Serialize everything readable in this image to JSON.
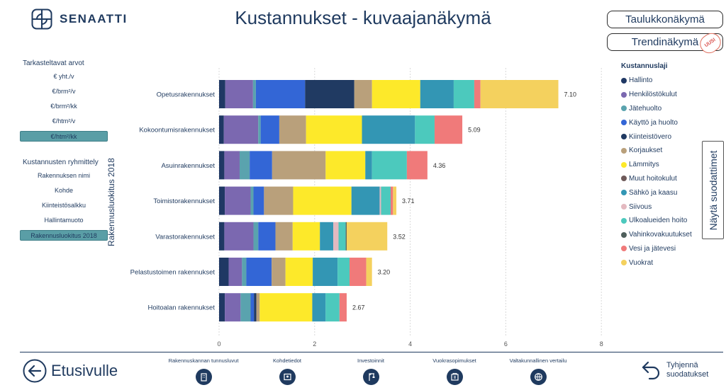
{
  "header": {
    "logo_text": "SENAATTI",
    "title": "Kustannukset - kuvaajanäkymä",
    "table_view_label": "Taulukkonäkymä",
    "trend_view_label": "Trendinäkymä",
    "new_badge": "UUSI"
  },
  "left_panel": {
    "values_heading": "Tarkasteltavat arvot",
    "value_options": [
      "€ yht./v",
      "€/brm²/v",
      "€/brm²/kk",
      "€/htm²/v",
      "€/htm²/kk"
    ],
    "selected_value_index": 4,
    "grouping_heading": "Kustannusten ryhmittely",
    "grouping_options": [
      "Rakennuksen nimi",
      "Kohde",
      "Kiinteistösalkku",
      "Hallintamuoto",
      "Rakennusluokitus 2018"
    ],
    "selected_grouping_index": 4
  },
  "legend": {
    "title": "Kustannuslaji"
  },
  "filter_button_label": "Näytä suodattimet",
  "footer": {
    "back_label": "Etusivulle",
    "nav": [
      {
        "label": "Rakennuskannan tunnusluvut",
        "icon": "building-icon"
      },
      {
        "label": "Kohdetiedot",
        "icon": "map-icon"
      },
      {
        "label": "Investoinnit",
        "icon": "crane-icon"
      },
      {
        "label": "Vuokrasopimukset",
        "icon": "document-building-icon"
      },
      {
        "label": "Valtakunnallinen vertailu",
        "icon": "globe-icon"
      }
    ],
    "clear_label_line1": "Tyhjennä",
    "clear_label_line2": "suodatukset"
  },
  "chart_data": {
    "type": "bar",
    "orientation": "horizontal",
    "stacked": true,
    "ylabel": "Rakennusluokitus 2018",
    "xlim": [
      0,
      8
    ],
    "xticks": [
      0,
      2,
      4,
      6,
      8
    ],
    "grid": true,
    "legend_position": "right",
    "categories": [
      "Opetusrakennukset",
      "Kokoontumisrakennukset",
      "Asuinrakennukset",
      "Toimistorakennukset",
      "Varastorakennukset",
      "Pelastustoimen rakennukset",
      "Hoitoalan rakennukset"
    ],
    "totals": [
      7.1,
      5.09,
      4.36,
      3.71,
      3.52,
      3.2,
      2.67
    ],
    "total_labels": [
      "7.10",
      "5.09",
      "4.36",
      "3.71",
      "3.52",
      "3.20",
      "2.67"
    ],
    "series": [
      {
        "name": "Hallinto",
        "color": "#1f3864",
        "values": [
          0.13,
          0.1,
          0.11,
          0.12,
          0.11,
          0.2,
          0.12
        ]
      },
      {
        "name": "Henkilöstökulut",
        "color": "#7b68b0",
        "values": [
          0.58,
          0.72,
          0.32,
          0.54,
          0.61,
          0.28,
          0.33
        ]
      },
      {
        "name": "Jätehuolto",
        "color": "#5aa3ae",
        "values": [
          0.06,
          0.05,
          0.21,
          0.06,
          0.1,
          0.09,
          0.21
        ]
      },
      {
        "name": "Käyttö ja huolto",
        "color": "#3366d6",
        "values": [
          1.03,
          0.39,
          0.47,
          0.22,
          0.36,
          0.53,
          0.07
        ]
      },
      {
        "name": "Kiinteistövero",
        "color": "#203a62",
        "values": [
          1.03,
          0.0,
          0.0,
          0.0,
          0.0,
          0.0,
          0.05
        ]
      },
      {
        "name": "Korjaukset",
        "color": "#b9a07b",
        "values": [
          0.37,
          0.56,
          1.12,
          0.61,
          0.36,
          0.29,
          0.07
        ]
      },
      {
        "name": "Lämmitys",
        "color": "#fde92a",
        "values": [
          1.01,
          1.17,
          0.83,
          1.22,
          0.57,
          0.57,
          1.1
        ]
      },
      {
        "name": "Muut hoitokulut",
        "color": "#6e5a5a",
        "values": [
          0.0,
          0.0,
          0.0,
          0.0,
          0.0,
          0.0,
          0.0
        ]
      },
      {
        "name": "Sähkö ja kaasu",
        "color": "#3396b4",
        "values": [
          0.7,
          1.11,
          0.14,
          0.59,
          0.28,
          0.52,
          0.28
        ]
      },
      {
        "name": "Siivous",
        "color": "#e3b9c0",
        "values": [
          0.0,
          0.0,
          0.0,
          0.03,
          0.11,
          0.0,
          0.0
        ]
      },
      {
        "name": "Ulkoalueiden hoito",
        "color": "#4cc9bd",
        "values": [
          0.43,
          0.41,
          0.73,
          0.2,
          0.15,
          0.25,
          0.29
        ]
      },
      {
        "name": "Vahinkovakuutukset",
        "color": "#4f5f5c",
        "values": [
          0.0,
          0.0,
          0.0,
          0.0,
          0.02,
          0.0,
          0.0
        ]
      },
      {
        "name": "Vesi ja jätevesi",
        "color": "#f07a7a",
        "values": [
          0.13,
          0.58,
          0.43,
          0.05,
          0.0,
          0.35,
          0.15
        ]
      },
      {
        "name": "Vuokrat",
        "color": "#f4d15e",
        "values": [
          1.63,
          0.0,
          0.0,
          0.07,
          0.85,
          0.12,
          0.0
        ]
      }
    ]
  }
}
